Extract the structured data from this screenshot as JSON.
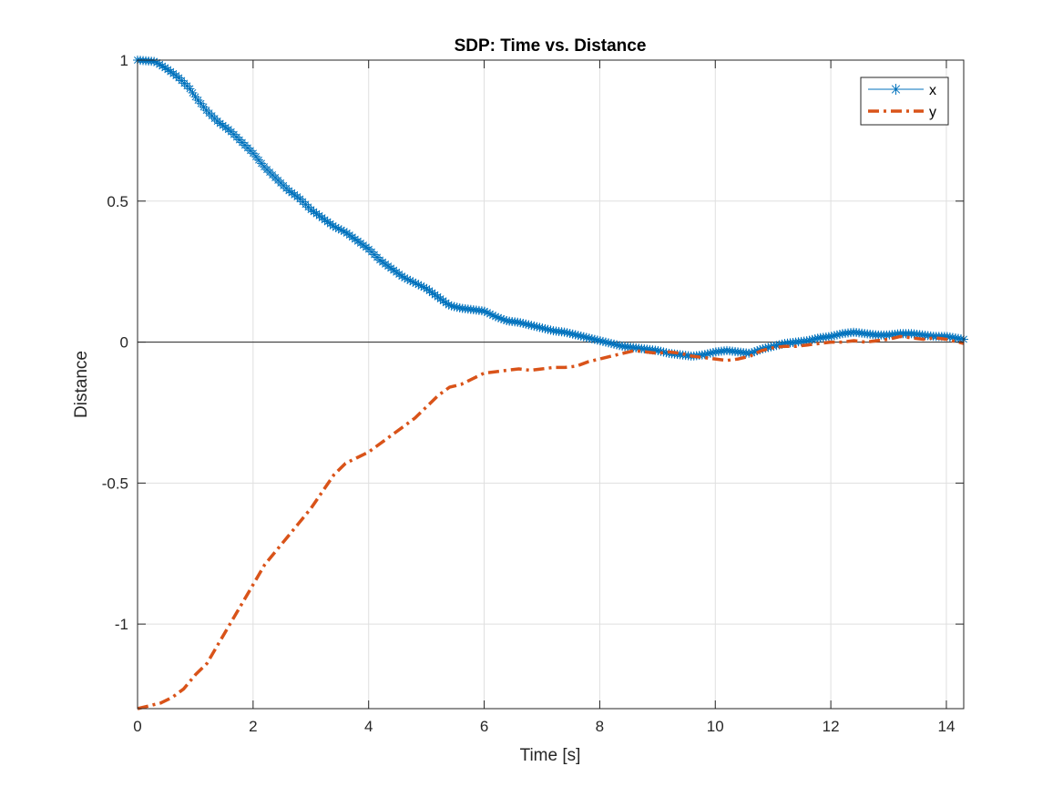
{
  "chart_data": {
    "type": "line",
    "title": "SDP: Time vs. Distance",
    "xlabel": "Time [s]",
    "ylabel": "Distance",
    "xlim": [
      0,
      14.3
    ],
    "ylim": [
      -1.3,
      1.0
    ],
    "xticks": [
      0,
      2,
      4,
      6,
      8,
      10,
      12,
      14
    ],
    "yticks": [
      1,
      0.5,
      0,
      -0.5,
      -1
    ],
    "xtick_labels": [
      "0",
      "2",
      "4",
      "6",
      "8",
      "10",
      "12",
      "14"
    ],
    "ytick_labels": [
      "1",
      "0.5",
      "0",
      "-0.5",
      "-1"
    ],
    "grid": true,
    "zero_line": true,
    "legend_position": "top-right",
    "series": [
      {
        "name": "x",
        "color": "#0072BD",
        "style": "solid-with-asterisk-markers",
        "points": [
          [
            0,
            1.0
          ],
          [
            0.3,
            0.995
          ],
          [
            0.5,
            0.97
          ],
          [
            0.7,
            0.94
          ],
          [
            0.9,
            0.9
          ],
          [
            1.0,
            0.87
          ],
          [
            1.2,
            0.82
          ],
          [
            1.4,
            0.78
          ],
          [
            1.6,
            0.75
          ],
          [
            1.8,
            0.71
          ],
          [
            2.0,
            0.67
          ],
          [
            2.2,
            0.62
          ],
          [
            2.4,
            0.58
          ],
          [
            2.6,
            0.54
          ],
          [
            2.8,
            0.51
          ],
          [
            3.0,
            0.47
          ],
          [
            3.2,
            0.44
          ],
          [
            3.4,
            0.41
          ],
          [
            3.6,
            0.39
          ],
          [
            3.8,
            0.36
          ],
          [
            4.0,
            0.33
          ],
          [
            4.2,
            0.29
          ],
          [
            4.4,
            0.26
          ],
          [
            4.6,
            0.23
          ],
          [
            4.8,
            0.21
          ],
          [
            5.0,
            0.19
          ],
          [
            5.2,
            0.16
          ],
          [
            5.4,
            0.13
          ],
          [
            5.6,
            0.12
          ],
          [
            5.8,
            0.115
          ],
          [
            6.0,
            0.11
          ],
          [
            6.2,
            0.09
          ],
          [
            6.4,
            0.075
          ],
          [
            6.6,
            0.07
          ],
          [
            6.8,
            0.06
          ],
          [
            7.0,
            0.05
          ],
          [
            7.2,
            0.04
          ],
          [
            7.4,
            0.035
          ],
          [
            7.6,
            0.025
          ],
          [
            7.8,
            0.015
          ],
          [
            8.0,
            0.005
          ],
          [
            8.2,
            -0.005
          ],
          [
            8.4,
            -0.015
          ],
          [
            8.6,
            -0.02
          ],
          [
            8.8,
            -0.025
          ],
          [
            9.0,
            -0.03
          ],
          [
            9.2,
            -0.04
          ],
          [
            9.4,
            -0.045
          ],
          [
            9.6,
            -0.05
          ],
          [
            9.8,
            -0.045
          ],
          [
            10.0,
            -0.035
          ],
          [
            10.2,
            -0.03
          ],
          [
            10.4,
            -0.035
          ],
          [
            10.6,
            -0.04
          ],
          [
            10.8,
            -0.025
          ],
          [
            11.0,
            -0.015
          ],
          [
            11.2,
            -0.005
          ],
          [
            11.4,
            0.0
          ],
          [
            11.6,
            0.005
          ],
          [
            11.8,
            0.015
          ],
          [
            12.0,
            0.02
          ],
          [
            12.2,
            0.03
          ],
          [
            12.4,
            0.035
          ],
          [
            12.6,
            0.03
          ],
          [
            12.8,
            0.025
          ],
          [
            13.0,
            0.025
          ],
          [
            13.2,
            0.03
          ],
          [
            13.4,
            0.03
          ],
          [
            13.6,
            0.025
          ],
          [
            13.8,
            0.02
          ],
          [
            14.0,
            0.02
          ],
          [
            14.3,
            0.01
          ]
        ]
      },
      {
        "name": "y",
        "color": "#D95319",
        "style": "dash-dot",
        "points": [
          [
            0,
            -1.3
          ],
          [
            0.2,
            -1.29
          ],
          [
            0.4,
            -1.28
          ],
          [
            0.6,
            -1.26
          ],
          [
            0.8,
            -1.23
          ],
          [
            1.0,
            -1.18
          ],
          [
            1.2,
            -1.14
          ],
          [
            1.4,
            -1.07
          ],
          [
            1.6,
            -1.0
          ],
          [
            1.8,
            -0.93
          ],
          [
            2.0,
            -0.86
          ],
          [
            2.2,
            -0.79
          ],
          [
            2.4,
            -0.74
          ],
          [
            2.6,
            -0.69
          ],
          [
            2.8,
            -0.64
          ],
          [
            3.0,
            -0.59
          ],
          [
            3.2,
            -0.53
          ],
          [
            3.4,
            -0.47
          ],
          [
            3.6,
            -0.43
          ],
          [
            3.8,
            -0.41
          ],
          [
            4.0,
            -0.39
          ],
          [
            4.2,
            -0.36
          ],
          [
            4.4,
            -0.33
          ],
          [
            4.6,
            -0.3
          ],
          [
            4.8,
            -0.27
          ],
          [
            5.0,
            -0.23
          ],
          [
            5.2,
            -0.19
          ],
          [
            5.4,
            -0.16
          ],
          [
            5.6,
            -0.15
          ],
          [
            5.8,
            -0.13
          ],
          [
            6.0,
            -0.11
          ],
          [
            6.2,
            -0.105
          ],
          [
            6.4,
            -0.1
          ],
          [
            6.6,
            -0.095
          ],
          [
            6.8,
            -0.1
          ],
          [
            7.0,
            -0.095
          ],
          [
            7.2,
            -0.09
          ],
          [
            7.4,
            -0.09
          ],
          [
            7.6,
            -0.085
          ],
          [
            7.8,
            -0.07
          ],
          [
            8.0,
            -0.06
          ],
          [
            8.2,
            -0.05
          ],
          [
            8.4,
            -0.04
          ],
          [
            8.6,
            -0.03
          ],
          [
            8.8,
            -0.035
          ],
          [
            9.0,
            -0.04
          ],
          [
            9.2,
            -0.035
          ],
          [
            9.4,
            -0.04
          ],
          [
            9.6,
            -0.05
          ],
          [
            9.8,
            -0.055
          ],
          [
            10.0,
            -0.06
          ],
          [
            10.2,
            -0.065
          ],
          [
            10.4,
            -0.06
          ],
          [
            10.6,
            -0.05
          ],
          [
            10.8,
            -0.03
          ],
          [
            11.0,
            -0.02
          ],
          [
            11.2,
            -0.015
          ],
          [
            11.4,
            -0.015
          ],
          [
            11.6,
            -0.01
          ],
          [
            11.8,
            -0.005
          ],
          [
            12.0,
            0.0
          ],
          [
            12.2,
            0.0
          ],
          [
            12.4,
            0.005
          ],
          [
            12.6,
            0.0
          ],
          [
            12.8,
            0.005
          ],
          [
            13.0,
            0.01
          ],
          [
            13.2,
            0.02
          ],
          [
            13.4,
            0.015
          ],
          [
            13.6,
            0.01
          ],
          [
            13.8,
            0.015
          ],
          [
            14.0,
            0.01
          ],
          [
            14.3,
            -0.005
          ]
        ]
      }
    ]
  }
}
